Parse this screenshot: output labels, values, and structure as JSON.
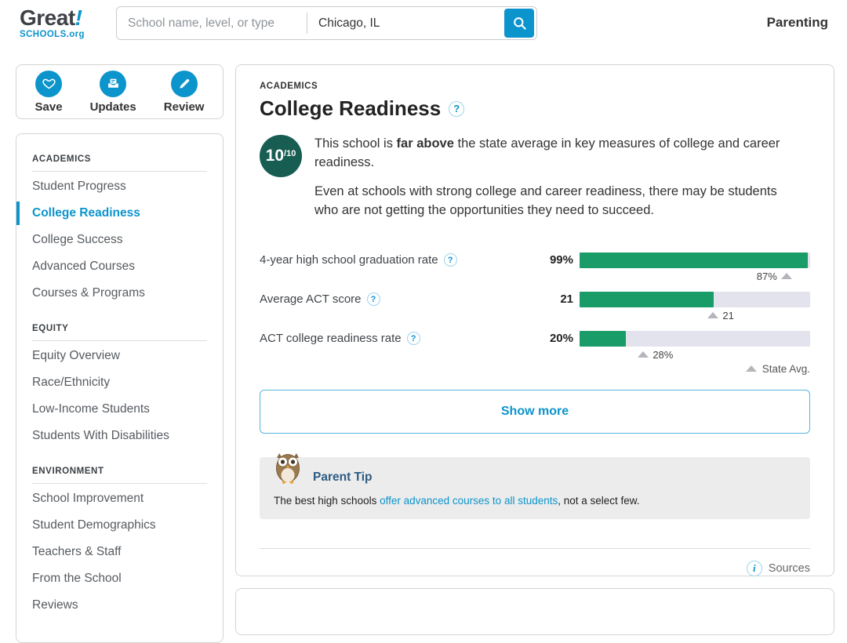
{
  "colors": {
    "accent_blue": "#0c94cc",
    "bar_green": "#1a9c68",
    "bar_track_gray": "#e3e3ee",
    "badge_teal": "#175d52",
    "tip_heading_blue": "#2d5b83",
    "marker_gray": "#b5b5bc"
  },
  "header": {
    "logo": {
      "word": "Great",
      "bang": "!",
      "sub": "SCHOOLS.org"
    },
    "search": {
      "name_placeholder": "School name, level, or type",
      "location_value": "Chicago, IL"
    },
    "parenting_link": "Parenting"
  },
  "action_bar": {
    "items": [
      {
        "label": "Save",
        "icon": "heart-icon"
      },
      {
        "label": "Updates",
        "icon": "inbox-icon"
      },
      {
        "label": "Review",
        "icon": "pencil-icon"
      }
    ]
  },
  "sidebar": {
    "sections": [
      {
        "title": "ACADEMICS",
        "items": [
          {
            "label": "Student Progress",
            "active": false
          },
          {
            "label": "College Readiness",
            "active": true
          },
          {
            "label": "College Success",
            "active": false
          },
          {
            "label": "Advanced Courses",
            "active": false
          },
          {
            "label": "Courses & Programs",
            "active": false
          }
        ]
      },
      {
        "title": "EQUITY",
        "items": [
          {
            "label": "Equity Overview",
            "active": false
          },
          {
            "label": "Race/Ethnicity",
            "active": false
          },
          {
            "label": "Low-Income Students",
            "active": false
          },
          {
            "label": "Students With Disabilities",
            "active": false
          }
        ]
      },
      {
        "title": "ENVIRONMENT",
        "items": [
          {
            "label": "School Improvement",
            "active": false
          },
          {
            "label": "Student Demographics",
            "active": false
          },
          {
            "label": "Teachers & Staff",
            "active": false
          },
          {
            "label": "From the School",
            "active": false
          },
          {
            "label": "Reviews",
            "active": false
          }
        ]
      }
    ]
  },
  "main": {
    "eyebrow": "ACADEMICS",
    "title": "College Readiness",
    "rating": {
      "score": "10",
      "denom": "/10"
    },
    "summary": {
      "p1_prefix": "This school is ",
      "p1_bold": "far above",
      "p1_suffix": " the state average in key measures of college and career readiness.",
      "p2": "Even at schools with strong college and career readiness, there may be students who are not getting the opportunities they need to succeed."
    },
    "chart": {
      "type": "bar",
      "rows": [
        {
          "label": "4-year high school graduation rate",
          "value": "99%",
          "bar_pct": 99,
          "avg_pct": 87,
          "avg_label": "87%"
        },
        {
          "label": "Average ACT score",
          "value": "21",
          "bar_pct": 58.3,
          "avg_pct": 58.3,
          "avg_label": "21"
        },
        {
          "label": "ACT college readiness rate",
          "value": "20%",
          "bar_pct": 20,
          "avg_pct": 28,
          "avg_label": "28%"
        }
      ],
      "legend_label": "State Avg."
    },
    "show_more_label": "Show more",
    "parent_tip": {
      "heading": "Parent Tip",
      "text_prefix": "The best high schools ",
      "link_text": "offer advanced courses to all students",
      "text_suffix": ", not a select few."
    },
    "sources_label": "Sources"
  }
}
